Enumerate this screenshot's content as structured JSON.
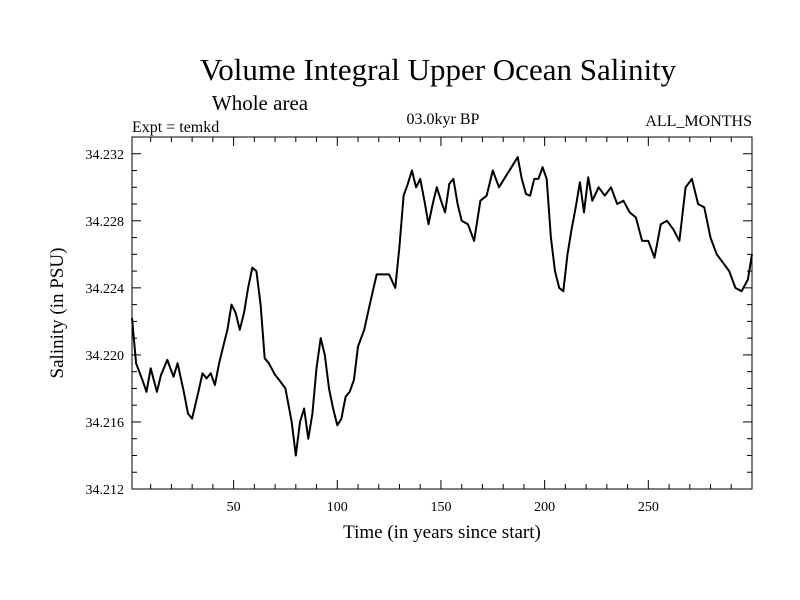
{
  "chart_data": {
    "type": "line",
    "title": "Volume Integral Upper Ocean Salinity",
    "subtitle": "Whole area",
    "left_label": "Expt = temkd",
    "center_label": "03.0kyr BP",
    "right_label": "ALL_MONTHS",
    "xlabel": "Time (in years since start)",
    "ylabel": "Salinity (in PSU)",
    "xlim": [
      1,
      300
    ],
    "ylim": [
      34.212,
      34.233
    ],
    "xticks": [
      50,
      100,
      150,
      200,
      250
    ],
    "xtick_labels": [
      "50",
      "100",
      "150",
      "200",
      "250"
    ],
    "yticks": [
      34.212,
      34.216,
      34.22,
      34.224,
      34.228,
      34.232
    ],
    "ytick_labels": [
      "34.212",
      "34.216",
      "34.220",
      "34.224",
      "34.228",
      "34.232"
    ],
    "series": [
      {
        "name": "salinity",
        "x": [
          1,
          3,
          6,
          8,
          10,
          13,
          15,
          18,
          21,
          23,
          26,
          28,
          30,
          33,
          35,
          37,
          39,
          41,
          43,
          45,
          47,
          49,
          51,
          53,
          55,
          57,
          59,
          61,
          63,
          65,
          67,
          70,
          72,
          75,
          78,
          80,
          82,
          84,
          86,
          88,
          90,
          92,
          94,
          96,
          98,
          100,
          102,
          104,
          106,
          108,
          110,
          113,
          116,
          119,
          122,
          125,
          128,
          130,
          132,
          134,
          136,
          138,
          140,
          142,
          144,
          146,
          148,
          150,
          152,
          154,
          156,
          158,
          160,
          163,
          166,
          169,
          172,
          175,
          178,
          181,
          184,
          187,
          189,
          191,
          193,
          195,
          197,
          199,
          201,
          203,
          205,
          207,
          209,
          211,
          213,
          215,
          217,
          219,
          221,
          223,
          226,
          229,
          232,
          235,
          238,
          241,
          244,
          247,
          250,
          253,
          256,
          259,
          262,
          265,
          268,
          271,
          274,
          277,
          280,
          283,
          286,
          289,
          292,
          295,
          298,
          300
        ],
        "values": [
          34.2222,
          34.2195,
          34.2185,
          34.2178,
          34.2192,
          34.2178,
          34.2188,
          34.2197,
          34.2187,
          34.2195,
          34.2178,
          34.2165,
          34.2162,
          34.2178,
          34.2189,
          34.2186,
          34.2189,
          34.2182,
          34.2195,
          34.2205,
          34.2215,
          34.223,
          34.2225,
          34.2215,
          34.2225,
          34.224,
          34.2252,
          34.225,
          34.223,
          34.2198,
          34.2195,
          34.2188,
          34.2185,
          34.218,
          34.216,
          34.214,
          34.216,
          34.2168,
          34.215,
          34.2165,
          34.2192,
          34.221,
          34.22,
          34.218,
          34.2168,
          34.2158,
          34.2162,
          34.2175,
          34.2178,
          34.2185,
          34.2205,
          34.2215,
          34.2232,
          34.2248,
          34.2248,
          34.2248,
          34.224,
          34.2265,
          34.2295,
          34.2302,
          34.231,
          34.23,
          34.2305,
          34.2292,
          34.2278,
          34.229,
          34.23,
          34.2292,
          34.2285,
          34.2302,
          34.2305,
          34.229,
          34.228,
          34.2278,
          34.2268,
          34.2292,
          34.2295,
          34.231,
          34.23,
          34.2306,
          34.2312,
          34.2318,
          34.2305,
          34.2296,
          34.2295,
          34.2305,
          34.2305,
          34.2312,
          34.2305,
          34.227,
          34.225,
          34.224,
          34.2238,
          34.226,
          34.2275,
          34.2288,
          34.2303,
          34.2285,
          34.2306,
          34.2292,
          34.23,
          34.2295,
          34.23,
          34.229,
          34.2292,
          34.2285,
          34.2282,
          34.2268,
          34.2268,
          34.2258,
          34.2278,
          34.228,
          34.2275,
          34.2268,
          34.23,
          34.2305,
          34.229,
          34.2288,
          34.227,
          34.226,
          34.2255,
          34.225,
          34.224,
          34.2238,
          34.2245,
          34.226
        ]
      }
    ]
  }
}
